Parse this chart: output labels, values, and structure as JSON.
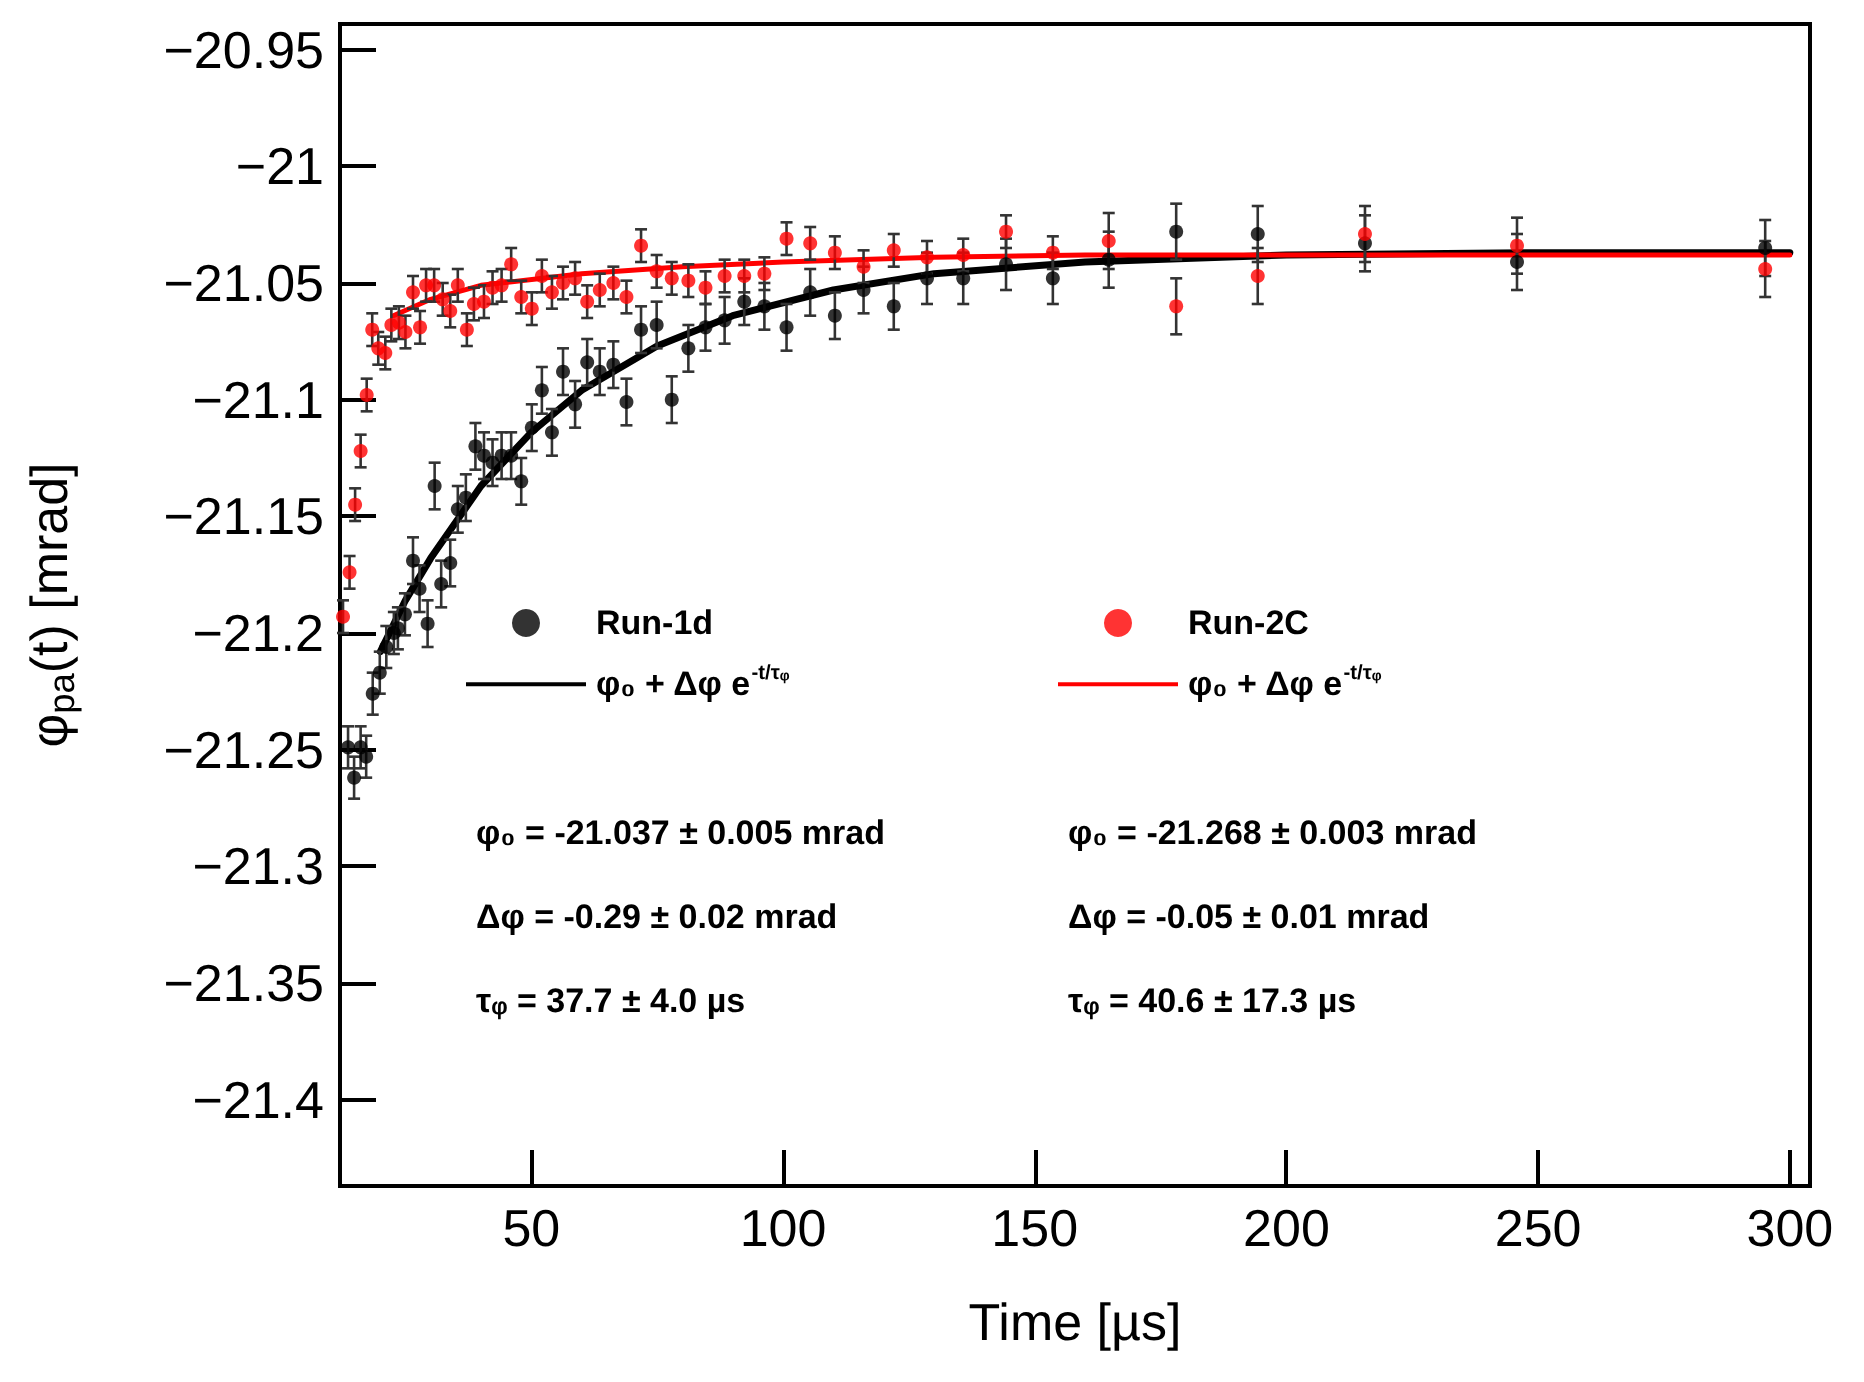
{
  "chart_data": {
    "type": "scatter",
    "xlabel": "Time [µs]",
    "ylabel": "φ$_{pa}$(t) [mrad]",
    "xlim": [
      12,
      304
    ],
    "xticks": [
      50,
      100,
      150,
      200,
      250,
      300
    ],
    "ylim": [
      -21.437,
      -20.939
    ],
    "yticks": [
      {
        "value": -20.95,
        "label": "−20.95"
      },
      {
        "value": -21,
        "label": "−21"
      },
      {
        "value": -21.05,
        "label": "−21.05"
      },
      {
        "value": -21.1,
        "label": "−21.1"
      },
      {
        "value": -21.15,
        "label": "−21.15"
      },
      {
        "value": -21.2,
        "label": "−21.2"
      },
      {
        "value": -21.25,
        "label": "−21.25"
      },
      {
        "value": -21.3,
        "label": "−21.3"
      },
      {
        "value": -21.35,
        "label": "−21.35"
      },
      {
        "value": -21.4,
        "label": "−21.4"
      }
    ],
    "grid": false,
    "legend": "bottom",
    "marker": "circle",
    "line_style": "solid",
    "series": [
      {
        "name": "Run-1d",
        "color": "#000000",
        "x": [
          13.6,
          14.8,
          16.1,
          17.2,
          18.5,
          19.9,
          21.2,
          22.7,
          23.5,
          24.9,
          26.5,
          27.8,
          29.4,
          30.8,
          32.1,
          33.9,
          35.4,
          37.0,
          38.9,
          40.6,
          42.3,
          44.1,
          46.0,
          48.0,
          50.1,
          52.1,
          54.1,
          56.3,
          58.7,
          61.1,
          63.6,
          66.3,
          68.9,
          71.8,
          74.9,
          77.9,
          81.2,
          84.6,
          88.4,
          92.3,
          96.3,
          100.7,
          105.4,
          110.3,
          116.0,
          122.0,
          128.6,
          135.8,
          144.3,
          153.6,
          164.7,
          178.1,
          194.3,
          215.6,
          245.8,
          295.1
        ],
        "values": [
          -21.249,
          -21.262,
          -21.249,
          -21.253,
          -21.226,
          -21.217,
          -21.206,
          -21.2,
          -21.198,
          -21.192,
          -21.169,
          -21.181,
          -21.196,
          -21.137,
          -21.179,
          -21.17,
          -21.147,
          -21.142,
          -21.12,
          -21.124,
          -21.127,
          -21.124,
          -21.124,
          -21.135,
          -21.112,
          -21.096,
          -21.114,
          -21.088,
          -21.102,
          -21.084,
          -21.088,
          -21.085,
          -21.101,
          -21.07,
          -21.068,
          -21.1,
          -21.078,
          -21.069,
          -21.066,
          -21.058,
          -21.06,
          -21.069,
          -21.054,
          -21.064,
          -21.053,
          -21.06,
          -21.048,
          -21.048,
          -21.042,
          -21.048,
          -21.04,
          -21.028,
          -21.029,
          -21.033,
          -21.041,
          -21.035
        ],
        "errors": [
          0.009,
          0.009,
          0.009,
          0.009,
          0.009,
          0.009,
          0.009,
          0.009,
          0.009,
          0.009,
          0.01,
          0.01,
          0.01,
          0.01,
          0.01,
          0.01,
          0.01,
          0.01,
          0.01,
          0.01,
          0.01,
          0.01,
          0.01,
          0.01,
          0.01,
          0.01,
          0.01,
          0.01,
          0.01,
          0.01,
          0.01,
          0.01,
          0.01,
          0.01,
          0.01,
          0.01,
          0.01,
          0.01,
          0.01,
          0.01,
          0.01,
          0.01,
          0.01,
          0.01,
          0.01,
          0.01,
          0.011,
          0.011,
          0.011,
          0.011,
          0.012,
          0.012,
          0.012,
          0.012,
          0.012,
          0.012
        ]
      },
      {
        "name": "φ₀ + Δφ e$^{-t/τᵩ}$",
        "type": "line",
        "marker": "none",
        "color": "#000000",
        "x": [
          20,
          25,
          30,
          40,
          50,
          60,
          75,
          90,
          110,
          130,
          160,
          200,
          250,
          300
        ],
        "values": [
          -21.208,
          -21.186,
          -21.168,
          -21.137,
          -21.114,
          -21.096,
          -21.077,
          -21.064,
          -21.053,
          -21.046,
          -21.041,
          -21.038,
          -21.037,
          -21.037
        ]
      },
      {
        "name": "Run-2C",
        "color": "#ff0000",
        "x": [
          12.6,
          13.9,
          15.0,
          16.1,
          17.3,
          18.4,
          19.6,
          21.0,
          22.2,
          23.7,
          25.0,
          26.5,
          27.9,
          29.1,
          30.7,
          32.4,
          33.9,
          35.4,
          37.2,
          38.6,
          40.6,
          42.3,
          44.1,
          46.0,
          48.0,
          50.1,
          52.1,
          54.1,
          56.3,
          58.7,
          61.1,
          63.6,
          66.3,
          68.9,
          71.8,
          74.9,
          77.9,
          81.2,
          84.6,
          88.4,
          92.3,
          96.3,
          100.7,
          105.4,
          110.3,
          116.0,
          122.0,
          128.6,
          135.8,
          144.3,
          153.6,
          164.7,
          178.1,
          194.3,
          215.6,
          245.8,
          295.1
        ],
        "values": [
          -21.193,
          -21.174,
          -21.145,
          -21.122,
          -21.098,
          -21.07,
          -21.078,
          -21.08,
          -21.068,
          -21.067,
          -21.071,
          -21.054,
          -21.069,
          -21.051,
          -21.051,
          -21.057,
          -21.062,
          -21.051,
          -21.07,
          -21.059,
          -21.058,
          -21.052,
          -21.051,
          -21.042,
          -21.056,
          -21.061,
          -21.047,
          -21.054,
          -21.05,
          -21.048,
          -21.058,
          -21.053,
          -21.05,
          -21.056,
          -21.034,
          -21.045,
          -21.048,
          -21.049,
          -21.052,
          -21.047,
          -21.047,
          -21.046,
          -21.031,
          -21.033,
          -21.037,
          -21.043,
          -21.036,
          -21.039,
          -21.038,
          -21.028,
          -21.037,
          -21.032,
          -21.06,
          -21.047,
          -21.029,
          -21.034,
          -21.044
        ],
        "errors": [
          0.007,
          0.007,
          0.007,
          0.007,
          0.007,
          0.007,
          0.007,
          0.007,
          0.007,
          0.007,
          0.007,
          0.007,
          0.007,
          0.007,
          0.007,
          0.007,
          0.007,
          0.007,
          0.007,
          0.007,
          0.007,
          0.007,
          0.007,
          0.007,
          0.007,
          0.007,
          0.007,
          0.007,
          0.007,
          0.007,
          0.007,
          0.007,
          0.007,
          0.007,
          0.007,
          0.007,
          0.007,
          0.007,
          0.007,
          0.007,
          0.007,
          0.007,
          0.007,
          0.007,
          0.007,
          0.007,
          0.007,
          0.007,
          0.007,
          0.007,
          0.007,
          0.012,
          0.012,
          0.012,
          0.012,
          0.012,
          0.012
        ]
      },
      {
        "name": "φ₀ + Δφ e$^{-t/τᵩ}$",
        "type": "line",
        "marker": "none",
        "color": "#ff0000",
        "x": [
          22.6,
          30,
          40,
          60,
          80,
          100,
          130,
          160,
          200,
          300
        ],
        "values": [
          -21.064,
          -21.057,
          -21.051,
          -21.046,
          -21.043,
          -21.041,
          -21.039,
          -21.038,
          -21.038,
          -21.038
        ]
      }
    ],
    "annotations": [
      "φ₀ = -21.037 ± 0.005 mrad",
      "Δφ = -0.29 ± 0.02 mrad",
      "τᵩ = 37.7 ± 4.0 µs",
      "φ₀ = -21.268 ± 0.003 mrad",
      "Δφ = -0.05 ± 0.01 mrad",
      "τᵩ = 40.6 ± 17.3 µs"
    ]
  }
}
